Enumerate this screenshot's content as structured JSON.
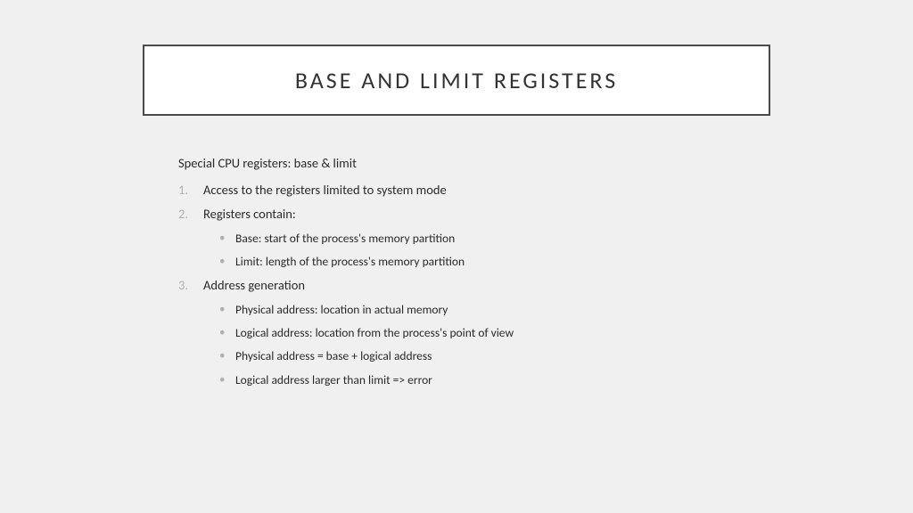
{
  "title": "BASE AND LIMIT REGISTERS",
  "intro": "Special CPU registers: base & limit",
  "items": [
    {
      "text": "Access to the registers limited to system mode",
      "sub": []
    },
    {
      "text": "Registers contain:",
      "sub": [
        "Base: start of the process's memory partition",
        "Limit: length of the process's memory partition"
      ]
    },
    {
      "text": "Address generation",
      "sub": [
        "Physical address: location in actual memory",
        "Logical address: location from the process's point of view",
        "Physical address = base + logical address",
        "Logical address larger than limit => error"
      ]
    }
  ]
}
